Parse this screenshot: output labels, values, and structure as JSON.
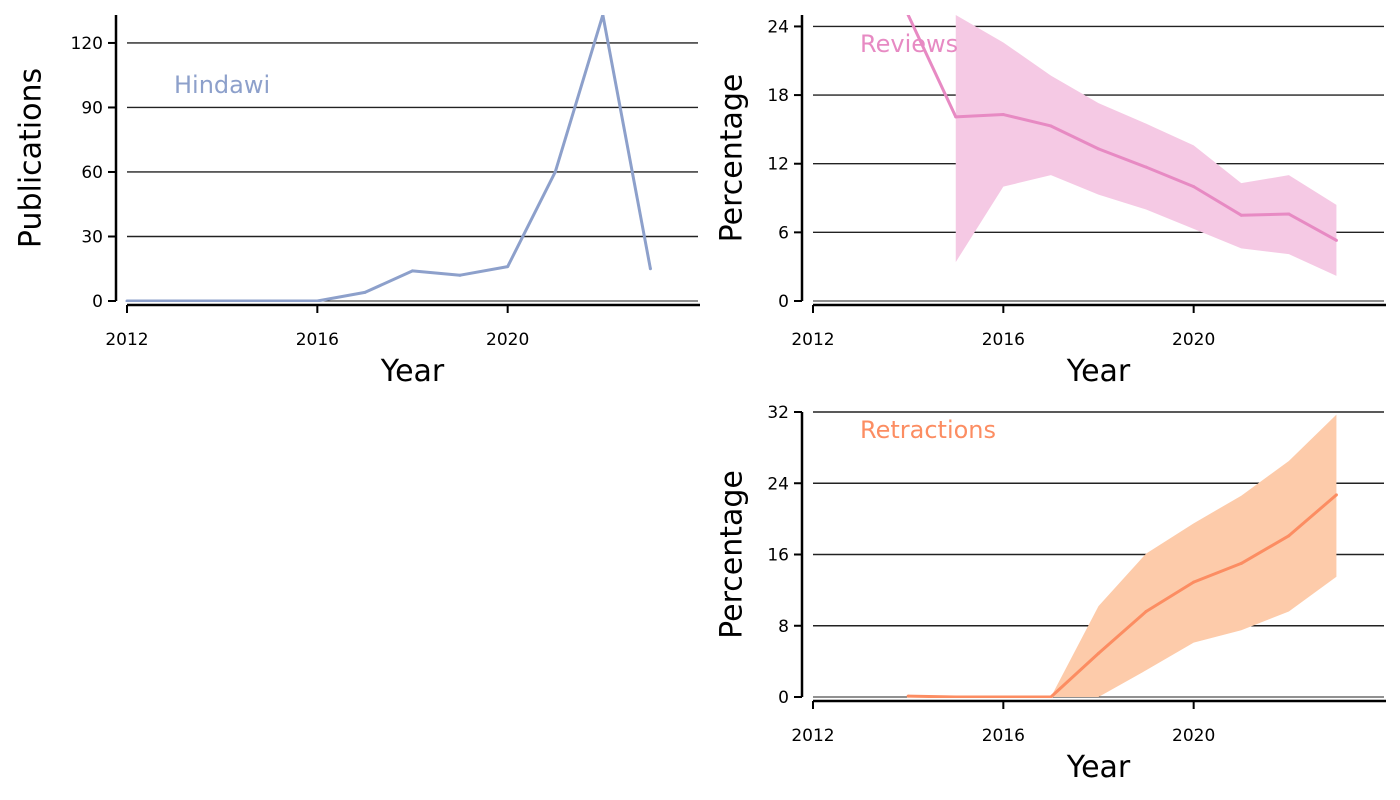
{
  "chart_data": [
    {
      "type": "line",
      "panel_label": "Hindawi",
      "xlabel": "Year",
      "ylabel": "Publications",
      "xlim": [
        2012,
        2024
      ],
      "ylim": [
        0,
        133
      ],
      "xticks": [
        2012,
        2016,
        2020
      ],
      "yticks": [
        0,
        30,
        60,
        90,
        120
      ],
      "grid": "horizontal",
      "color": "#8da0cb",
      "series": [
        {
          "x": [
            2012,
            2013,
            2014,
            2015,
            2016,
            2017,
            2018,
            2019,
            2020,
            2021,
            2022,
            2023
          ],
          "values": [
            0,
            0,
            0,
            0,
            0,
            4,
            14,
            12,
            16,
            60,
            133,
            15
          ]
        }
      ]
    },
    {
      "type": "line",
      "panel_label": "Reviews",
      "xlabel": "Year",
      "ylabel": "Percentage",
      "xlim": [
        2012,
        2024
      ],
      "ylim": [
        0,
        25
      ],
      "xticks": [
        2012,
        2016,
        2020
      ],
      "yticks": [
        0,
        6,
        12,
        18,
        24
      ],
      "grid": "horizontal",
      "color": "#e78ac3",
      "band_color": "#f5c9e4",
      "series": [
        {
          "x": [
            2014,
            2015,
            2016,
            2017,
            2018,
            2019,
            2020,
            2021,
            2022,
            2023
          ],
          "values": [
            25,
            16.1,
            16.3,
            15.3,
            13.3,
            11.7,
            10,
            7.5,
            7.6,
            5.3
          ],
          "lower": [
            null,
            3.4,
            10,
            11,
            9.3,
            8,
            6.3,
            4.6,
            4.1,
            2.2
          ],
          "upper": [
            null,
            25,
            22.6,
            19.7,
            17.3,
            15.5,
            13.6,
            10.3,
            11,
            8.4
          ]
        }
      ]
    },
    {
      "type": "line",
      "panel_label": "Retractions",
      "xlabel": "Year",
      "ylabel": "Percentage",
      "xlim": [
        2012,
        2024
      ],
      "ylim": [
        0,
        32
      ],
      "xticks": [
        2012,
        2016,
        2020
      ],
      "yticks": [
        0,
        8,
        16,
        24,
        32
      ],
      "grid": "horizontal",
      "color": "#fc8d62",
      "band_color": "#fdcbaa",
      "series": [
        {
          "x": [
            2014,
            2015,
            2016,
            2017,
            2018,
            2019,
            2020,
            2021,
            2022,
            2023
          ],
          "values": [
            0.1,
            0,
            0,
            0,
            4.9,
            9.6,
            12.9,
            15,
            18.1,
            22.7
          ],
          "lower": [
            0.1,
            0,
            0,
            0,
            0,
            3,
            6.1,
            7.5,
            9.6,
            13.5
          ],
          "upper": [
            0.1,
            0,
            0,
            0,
            10.2,
            16.1,
            19.5,
            22.6,
            26.5,
            31.7
          ]
        }
      ]
    }
  ]
}
